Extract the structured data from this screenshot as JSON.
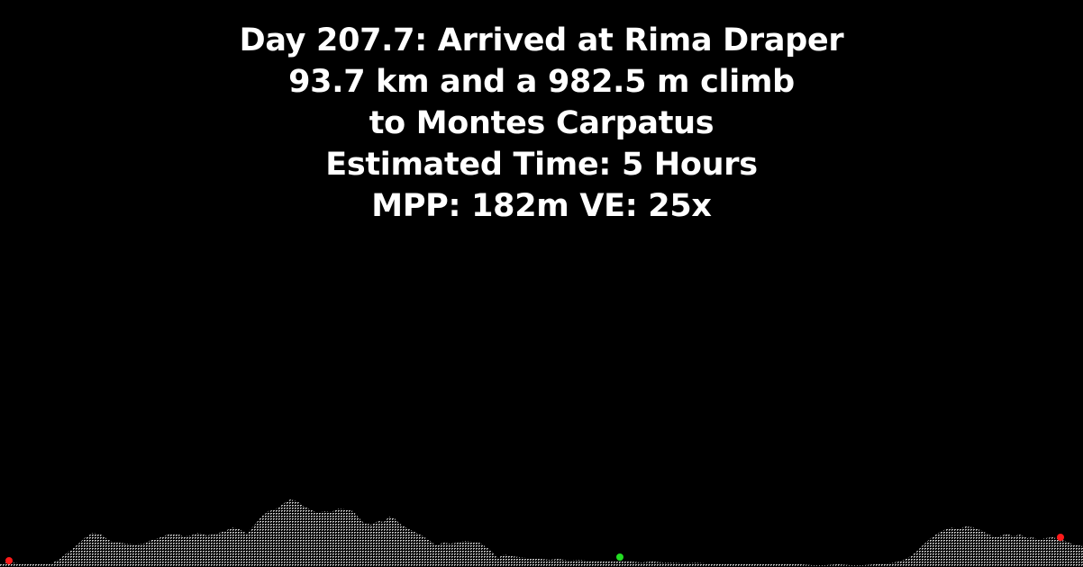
{
  "header": {
    "line1": "Day 207.7: Arrived at Rima Draper",
    "line2": "93.7 km and a 982.5 m climb",
    "line3": "to Montes Carpatus",
    "line4": "Estimated Time: 5 Hours",
    "line5": "MPP: 182m VE: 25x"
  },
  "colors": {
    "background": "#000000",
    "text": "#ffffff",
    "terrain_fill": "#bbbbbb",
    "start_marker": "#ff1a1a",
    "midpoint_marker": "#22dd22",
    "end_marker": "#ff1a1a"
  }
}
